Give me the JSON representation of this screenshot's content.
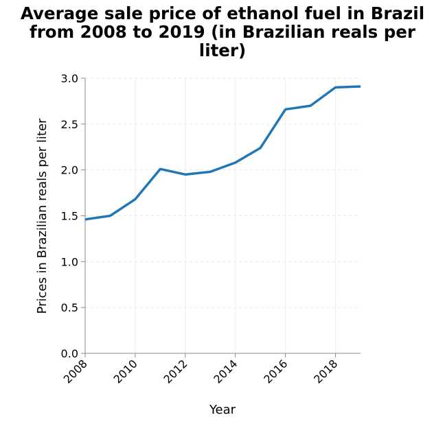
{
  "chart_data": {
    "type": "line",
    "title_lines": [
      "Average sale price of ethanol fuel in Brazil",
      "from 2008 to 2019 (in Brazilian reals per",
      "liter)"
    ],
    "xlabel": "Year",
    "ylabel": "Prices in Brazilian reals per liter",
    "xlim": [
      2008,
      2019
    ],
    "ylim": [
      0,
      3.0
    ],
    "x_ticks": [
      "2008",
      "2010",
      "2012",
      "2014",
      "2016",
      "2018"
    ],
    "y_ticks": [
      "0.0",
      "0.5",
      "1.0",
      "1.5",
      "2.0",
      "2.5",
      "3.0"
    ],
    "grid": true,
    "series": [
      {
        "color": "#1f77b4",
        "x": [
          2008,
          2009,
          2010,
          2011,
          2012,
          2013,
          2014,
          2015,
          2016,
          2017,
          2018,
          2019
        ],
        "values": [
          1.46,
          1.5,
          1.68,
          2.01,
          1.95,
          1.98,
          2.08,
          2.24,
          2.66,
          2.7,
          2.9,
          2.91
        ]
      }
    ]
  }
}
